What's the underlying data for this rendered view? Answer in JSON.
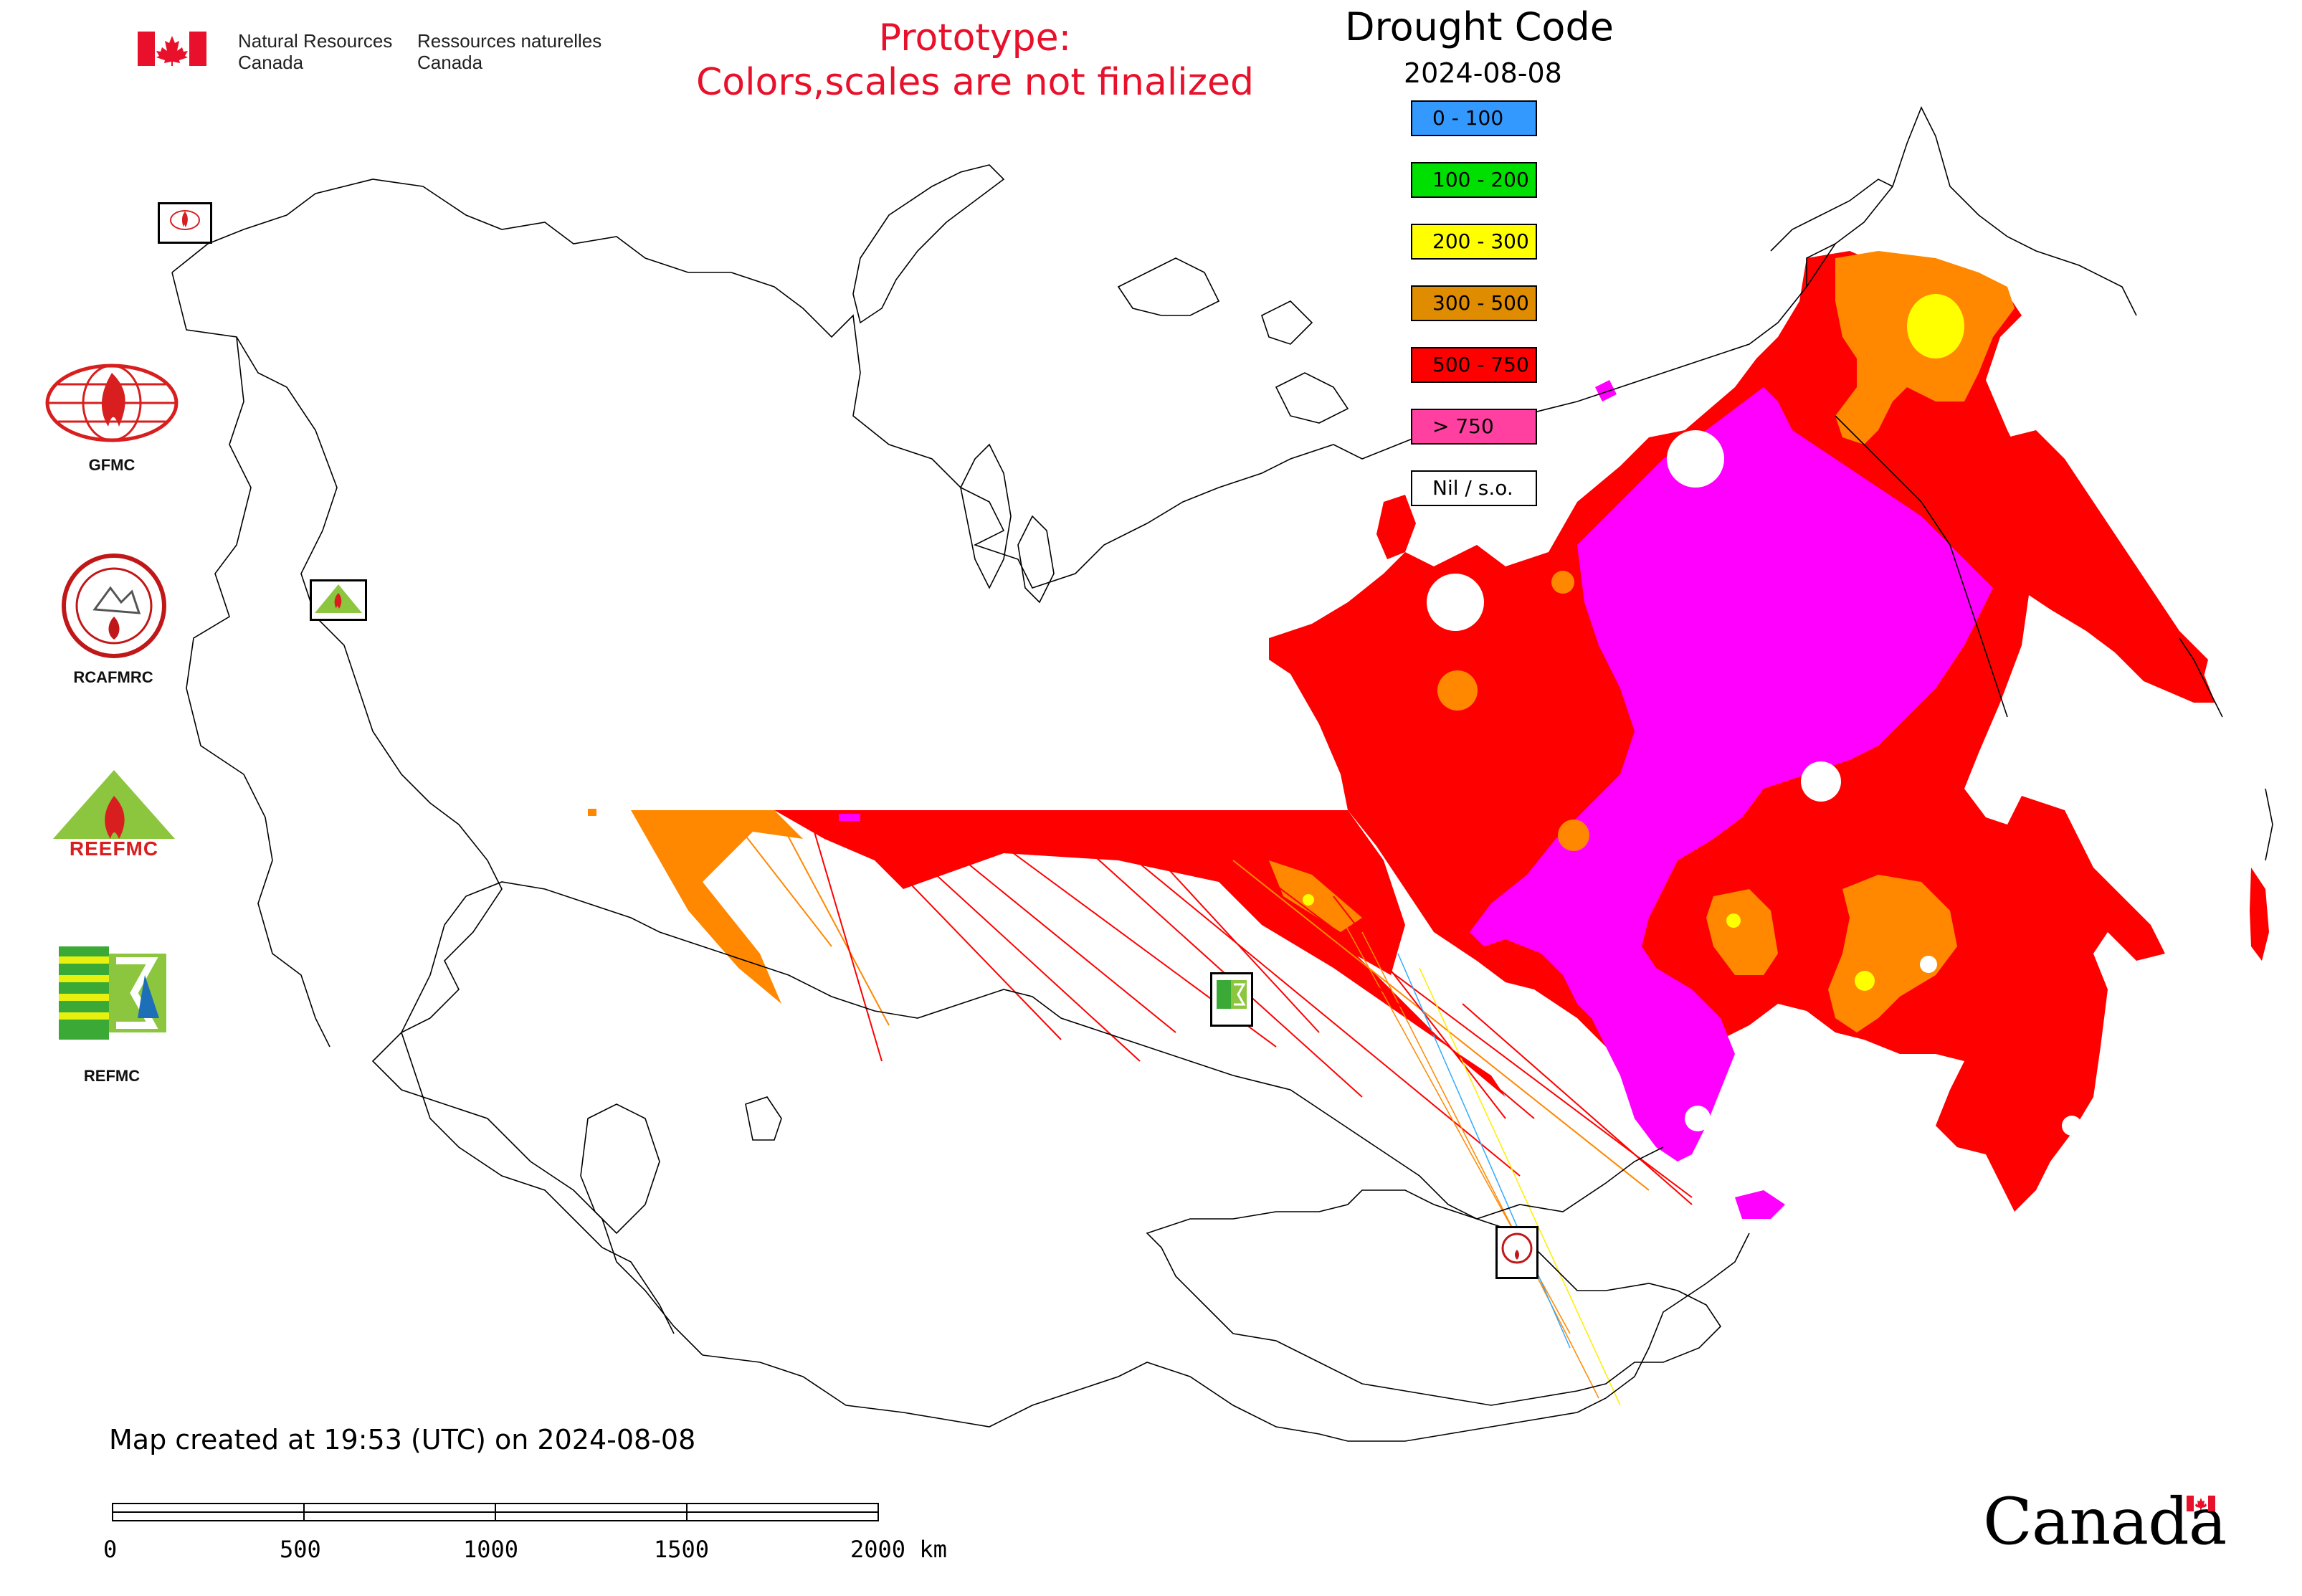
{
  "header": {
    "agency_en_line1": "Natural Resources",
    "agency_en_line2": "Canada",
    "agency_fr_line1": "Ressources naturelles",
    "agency_fr_line2": "Canada",
    "prototype_line1": "Prototype:",
    "prototype_line2": "Colors,scales are not finalized"
  },
  "legend": {
    "title": "Drought Code",
    "date": "2024-08-08",
    "items": [
      {
        "label": "0 - 100",
        "color": "#3399ff"
      },
      {
        "label": "100 - 200",
        "color": "#00e000"
      },
      {
        "label": "200 - 300",
        "color": "#ffff00"
      },
      {
        "label": "300 - 500",
        "color": "#e08c00"
      },
      {
        "label": "500 - 750",
        "color": "#ff0000"
      },
      {
        "label": "> 750",
        "color": "#ff40a0"
      },
      {
        "label": "Nil / s.o.",
        "color": "#ffffff"
      }
    ]
  },
  "organizations": [
    {
      "label": "GFMC"
    },
    {
      "label": "RCAFMRC"
    },
    {
      "label": "REEFMC"
    },
    {
      "label": "REFMC"
    }
  ],
  "footer": {
    "created_note": "Map created at 19:53 (UTC) on 2024-08-08",
    "scale_labels": [
      "0",
      "500",
      "1000",
      "1500",
      "2000 km"
    ],
    "wordmark": "Canada"
  },
  "colors": {
    "red": "#ff0000",
    "orange": "#ff8800",
    "magenta": "#ff00ff",
    "accent_red_text": "#e8102a"
  }
}
